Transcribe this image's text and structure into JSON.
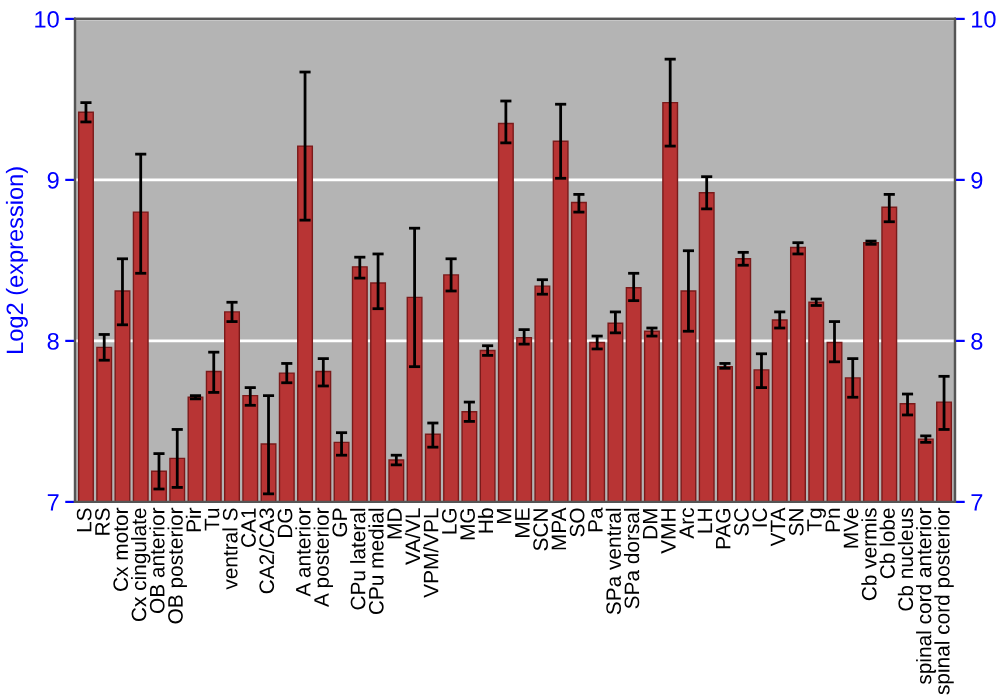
{
  "chart_data": {
    "type": "bar",
    "ylabel": "Log2 (expression)",
    "categories": [
      "LS",
      "RS",
      "Cx motor",
      "Cx cingulate",
      "OB anterior",
      "OB posterior",
      "Pir",
      "Tu",
      "ventral S",
      "CA1",
      "CA2/CA3",
      "DG",
      "A anterior",
      "A posterior",
      "GP",
      "CPu lateral",
      "CPu medial",
      "MD",
      "VA/VL",
      "VPM/VPL",
      "LG",
      "MG",
      "Hb",
      "M",
      "ME",
      "SCN",
      "MPA",
      "SO",
      "Pa",
      "SPa ventral",
      "SPa dorsal",
      "DM",
      "VMH",
      "Arc",
      "LH",
      "PAG",
      "SC",
      "IC",
      "VTA",
      "SN",
      "Tg",
      "Pn",
      "MVe",
      "Cb vermis",
      "Cb lobe",
      "Cb nucleus",
      "spinal cord anterior",
      "spinal cord posterior"
    ],
    "values": [
      9.42,
      7.96,
      8.31,
      8.8,
      7.19,
      7.27,
      7.65,
      7.81,
      8.18,
      7.66,
      7.36,
      7.8,
      9.21,
      7.81,
      7.37,
      8.46,
      8.36,
      7.26,
      8.27,
      7.42,
      8.41,
      7.56,
      7.94,
      9.35,
      8.02,
      8.34,
      9.24,
      8.86,
      7.99,
      8.11,
      8.33,
      8.06,
      9.48,
      8.31,
      8.92,
      7.84,
      8.51,
      7.82,
      8.13,
      8.58,
      8.24,
      7.99,
      7.77,
      8.61,
      8.83,
      7.61,
      7.39,
      7.62
    ],
    "errors": [
      [
        9.36,
        9.48
      ],
      [
        7.88,
        8.04
      ],
      [
        8.1,
        8.51
      ],
      [
        8.42,
        9.16
      ],
      [
        7.08,
        7.3
      ],
      [
        7.09,
        7.45
      ],
      [
        7.64,
        7.66
      ],
      [
        7.68,
        7.93
      ],
      [
        8.12,
        8.24
      ],
      [
        7.6,
        7.71
      ],
      [
        7.05,
        7.66
      ],
      [
        7.74,
        7.86
      ],
      [
        8.75,
        9.67
      ],
      [
        7.72,
        7.89
      ],
      [
        7.29,
        7.43
      ],
      [
        8.39,
        8.52
      ],
      [
        8.2,
        8.54
      ],
      [
        7.23,
        7.29
      ],
      [
        7.84,
        8.7
      ],
      [
        7.34,
        7.49
      ],
      [
        8.31,
        8.51
      ],
      [
        7.5,
        7.62
      ],
      [
        7.91,
        7.97
      ],
      [
        9.23,
        9.49
      ],
      [
        7.98,
        8.07
      ],
      [
        8.29,
        8.38
      ],
      [
        9.01,
        9.47
      ],
      [
        8.8,
        8.91
      ],
      [
        7.95,
        8.03
      ],
      [
        8.05,
        8.18
      ],
      [
        8.25,
        8.42
      ],
      [
        8.03,
        8.08
      ],
      [
        9.21,
        9.75
      ],
      [
        8.06,
        8.56
      ],
      [
        8.82,
        9.02
      ],
      [
        7.83,
        7.86
      ],
      [
        8.47,
        8.55
      ],
      [
        7.71,
        7.92
      ],
      [
        8.08,
        8.18
      ],
      [
        8.54,
        8.61
      ],
      [
        8.22,
        8.26
      ],
      [
        7.87,
        8.12
      ],
      [
        7.65,
        7.89
      ],
      [
        8.6,
        8.62
      ],
      [
        8.74,
        8.91
      ],
      [
        7.54,
        7.67
      ],
      [
        7.37,
        7.41
      ],
      [
        7.45,
        7.78
      ]
    ],
    "color": "#b83434",
    "ylim": [
      7,
      10
    ],
    "yticks": [
      7,
      8,
      9,
      10
    ],
    "y2lim": [
      7,
      10
    ],
    "y2ticks": [
      7,
      8,
      9,
      10
    ],
    "grid": "y"
  }
}
